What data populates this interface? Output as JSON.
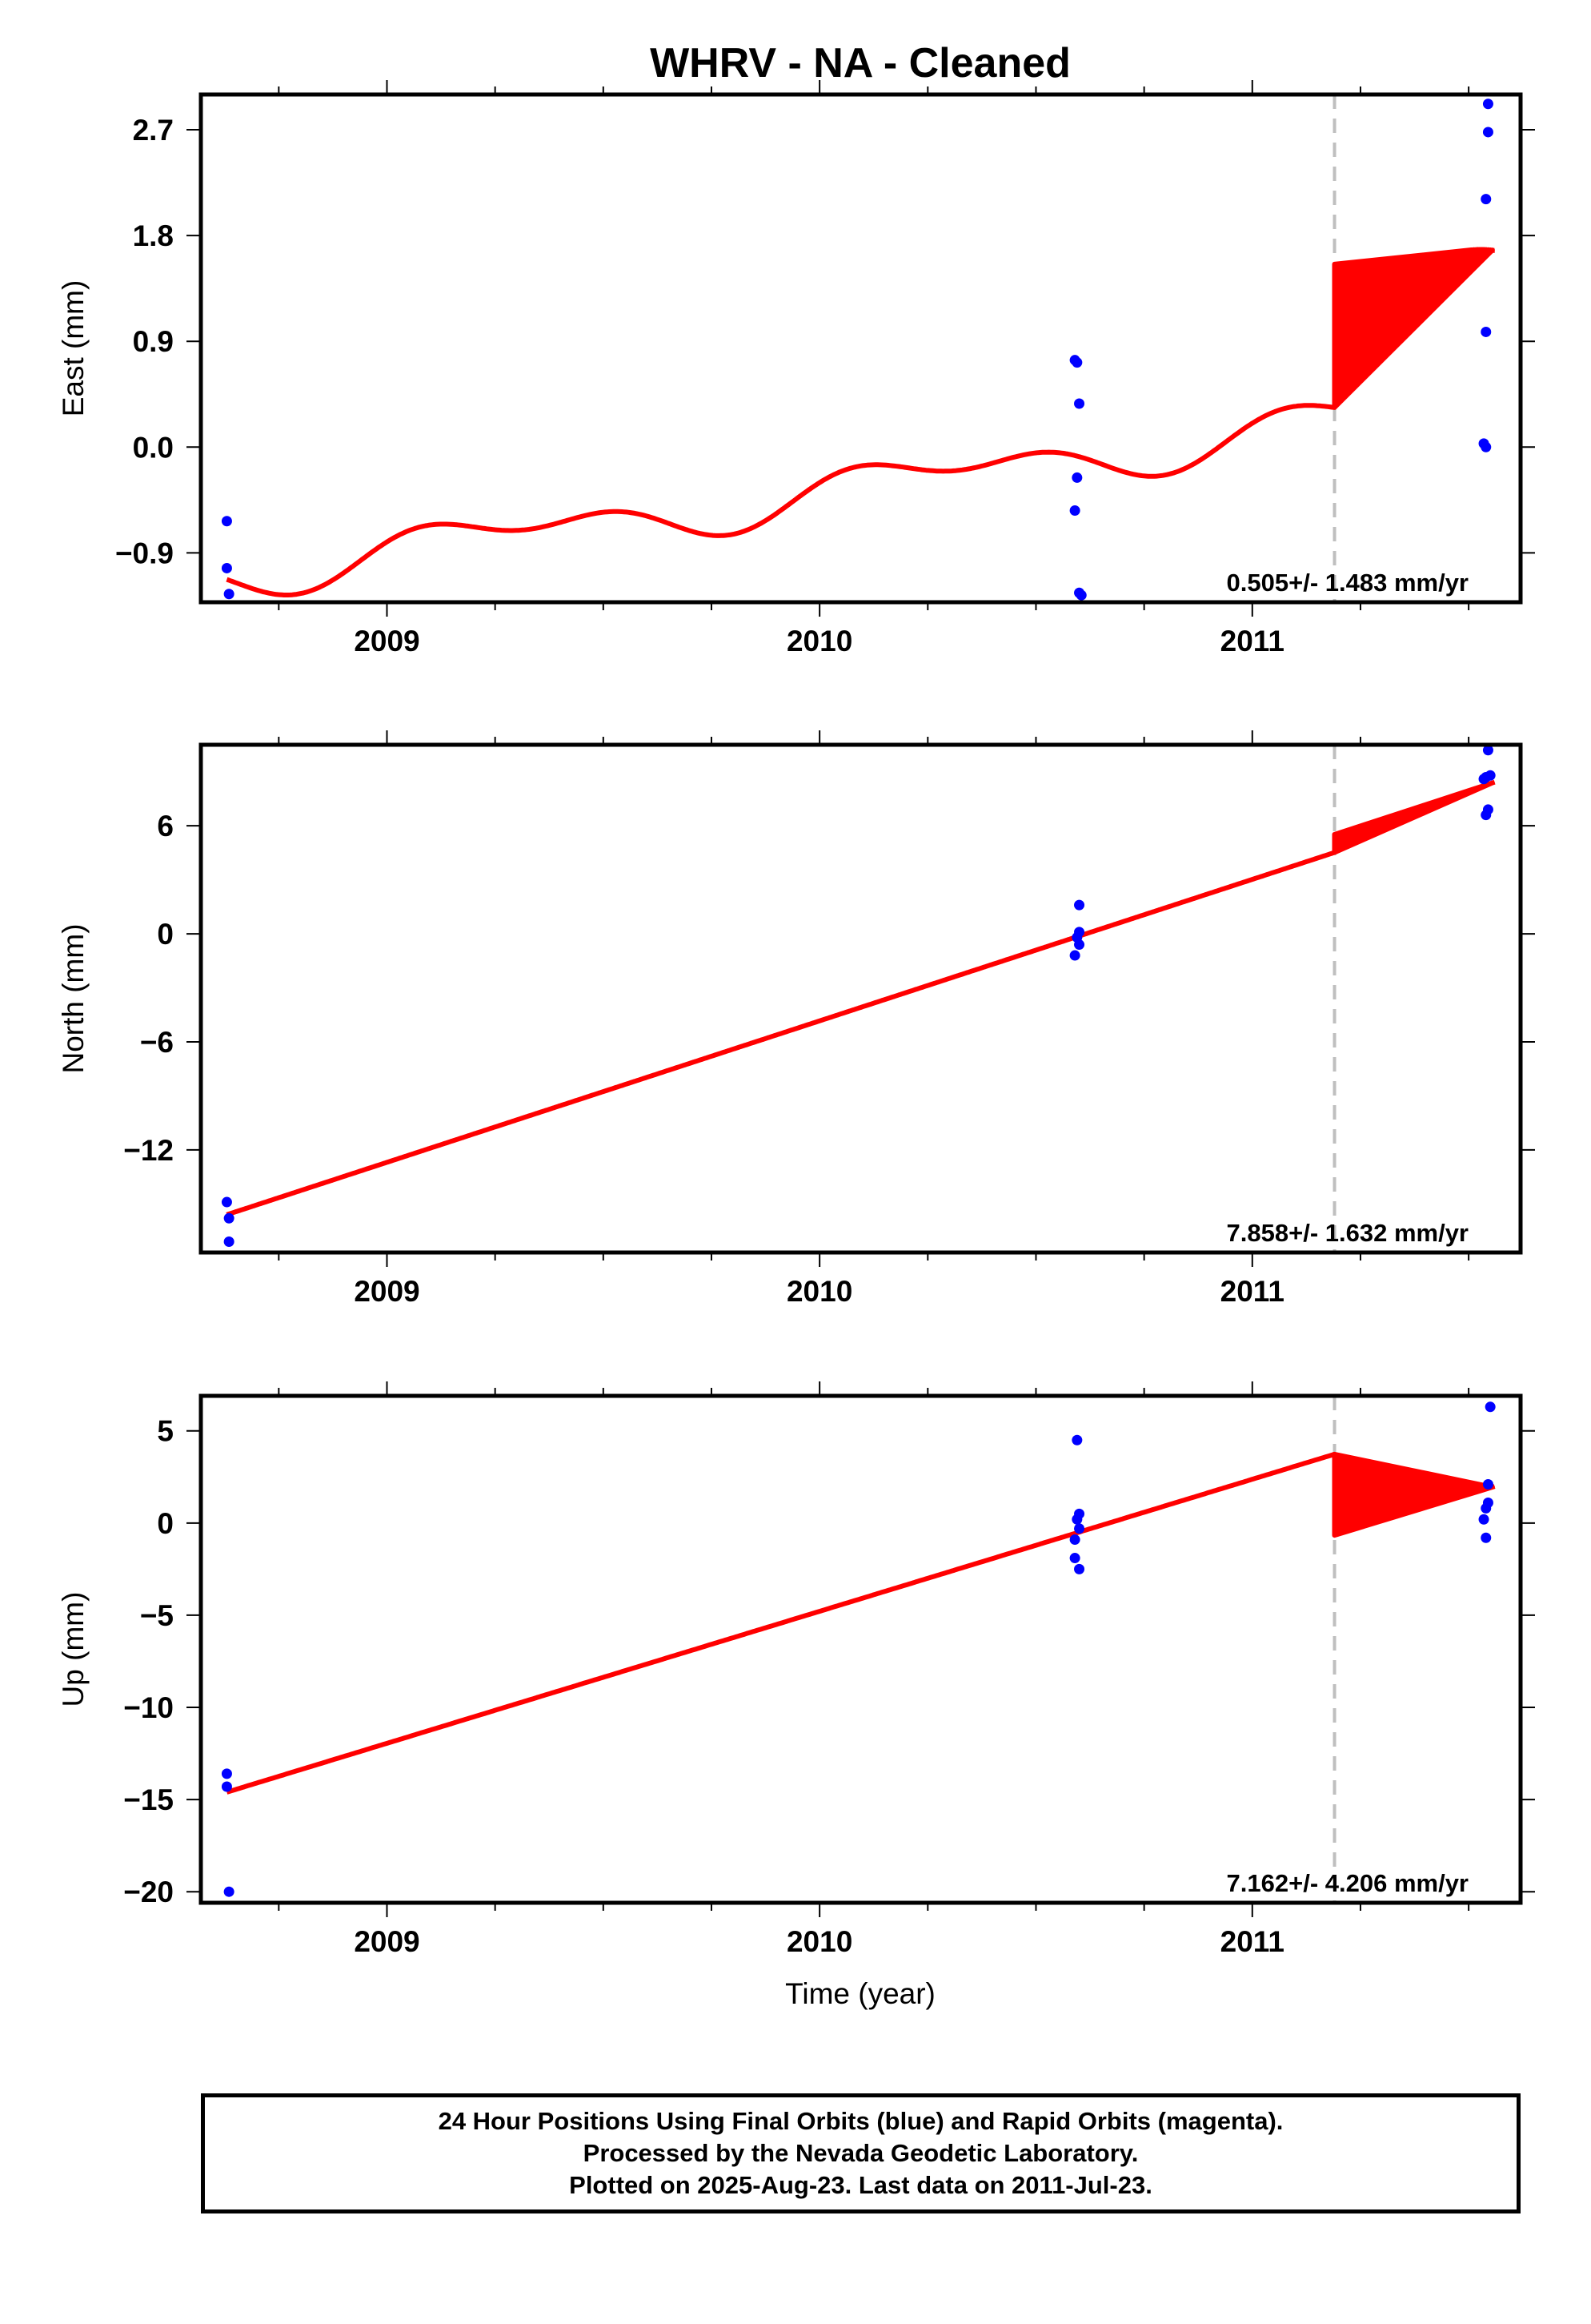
{
  "title": "WHRV  - NA - Cleaned",
  "xlabel": "Time (year)",
  "colors": {
    "final_orbits": "#0000ff",
    "model": "#ff0000",
    "offset_line": "#bfbfbf",
    "frame": "#000000"
  },
  "caption": [
    "24 Hour Positions Using Final Orbits (blue) and Rapid Orbits (magenta).",
    "Processed by the Nevada Geodetic Laboratory.",
    "Plotted on 2025-Aug-23. Last data on 2011-Jul-23."
  ],
  "chart_data": [
    {
      "type": "scatter",
      "ylabel": "East (mm)",
      "xlim": [
        2008.57,
        2011.62
      ],
      "ylim": [
        -1.32,
        3.0
      ],
      "x_ticks": [
        2009,
        2010,
        2011
      ],
      "x_tick_labels": [
        "2009",
        "2010",
        "2011"
      ],
      "y_ticks": [
        -0.9,
        0.0,
        0.9,
        1.8,
        2.7
      ],
      "y_tick_labels": [
        "−0.9",
        "0.0",
        "0.9",
        "1.8",
        "2.7"
      ],
      "rate_label": "0.505+/- 1.483 mm/yr",
      "offset_epoch": 2011.19,
      "model": {
        "rate": 0.505,
        "rate_unit": "mm/yr",
        "epoch": 2008.63,
        "intercept": -1.08,
        "step": 1.22,
        "annual_amp": 0.15,
        "annual_phase": 0.0,
        "semiannual_amp": 0.11,
        "semiannual_phase": 0.9,
        "end": 2011.56
      },
      "points": [
        [
          2008.63,
          -0.63
        ],
        [
          2008.63,
          -1.03
        ],
        [
          2008.635,
          -1.25
        ],
        [
          2010.59,
          0.74
        ],
        [
          2010.595,
          0.72
        ],
        [
          2010.6,
          0.37
        ],
        [
          2010.595,
          -0.26
        ],
        [
          2010.59,
          -0.54
        ],
        [
          2010.6,
          -1.24
        ],
        [
          2010.605,
          -1.26
        ],
        [
          2011.545,
          2.92
        ],
        [
          2011.545,
          2.68
        ],
        [
          2011.54,
          2.11
        ],
        [
          2011.54,
          0.98
        ],
        [
          2011.535,
          0.03
        ],
        [
          2011.54,
          0.0
        ]
      ]
    },
    {
      "type": "scatter",
      "ylabel": "North (mm)",
      "xlim": [
        2008.57,
        2011.62
      ],
      "ylim": [
        -17.7,
        10.5
      ],
      "x_ticks": [
        2009,
        2010,
        2011
      ],
      "x_tick_labels": [
        "2009",
        "2010",
        "2011"
      ],
      "y_ticks": [
        -12,
        -6,
        0,
        6
      ],
      "y_tick_labels": [
        "−12",
        "−6",
        "0",
        "6"
      ],
      "rate_label": "7.858+/- 1.632 mm/yr",
      "offset_epoch": 2011.19,
      "model": {
        "rate": 7.858,
        "rate_unit": "mm/yr",
        "epoch": 2008.63,
        "intercept": -15.6,
        "step": 1.0,
        "annual_amp": 0.0,
        "annual_phase": 0.0,
        "semiannual_amp": 0.0,
        "semiannual_phase": 0.0,
        "end": 2011.56
      },
      "points": [
        [
          2008.63,
          -14.9
        ],
        [
          2008.635,
          -15.8
        ],
        [
          2008.635,
          -17.1
        ],
        [
          2010.6,
          1.6
        ],
        [
          2010.6,
          0.1
        ],
        [
          2010.595,
          -0.2
        ],
        [
          2010.6,
          -0.6
        ],
        [
          2010.59,
          -1.2
        ],
        [
          2011.545,
          10.2
        ],
        [
          2011.55,
          8.8
        ],
        [
          2011.54,
          8.7
        ],
        [
          2011.535,
          8.6
        ],
        [
          2011.545,
          6.9
        ],
        [
          2011.54,
          6.6
        ]
      ]
    },
    {
      "type": "scatter",
      "ylabel": "Up (mm)",
      "xlim": [
        2008.57,
        2011.62
      ],
      "ylim": [
        -20.6,
        6.9
      ],
      "x_ticks": [
        2009,
        2010,
        2011
      ],
      "x_tick_labels": [
        "2009",
        "2010",
        "2011"
      ],
      "y_ticks": [
        -20,
        -15,
        -10,
        -5,
        0,
        5
      ],
      "y_tick_labels": [
        "−20",
        "−15",
        "−10",
        "−5",
        "0",
        "5"
      ],
      "rate_label": "7.162+/- 4.206 mm/yr",
      "offset_epoch": 2011.19,
      "model": {
        "rate": 7.162,
        "rate_unit": "mm/yr",
        "epoch": 2008.63,
        "intercept": -14.6,
        "step": -4.4,
        "annual_amp": 0.0,
        "annual_phase": 0.0,
        "semiannual_amp": 0.0,
        "semiannual_phase": 0.0,
        "end": 2011.56
      },
      "points": [
        [
          2008.63,
          -13.6
        ],
        [
          2008.63,
          -14.3
        ],
        [
          2008.635,
          -20.0
        ],
        [
          2010.595,
          4.5
        ],
        [
          2010.6,
          0.5
        ],
        [
          2010.595,
          0.2
        ],
        [
          2010.6,
          -0.3
        ],
        [
          2010.59,
          -0.9
        ],
        [
          2010.59,
          -1.9
        ],
        [
          2010.6,
          -2.5
        ],
        [
          2011.55,
          6.3
        ],
        [
          2011.545,
          2.1
        ],
        [
          2011.545,
          1.1
        ],
        [
          2011.54,
          0.8
        ],
        [
          2011.535,
          0.2
        ],
        [
          2011.54,
          -0.8
        ]
      ]
    }
  ]
}
